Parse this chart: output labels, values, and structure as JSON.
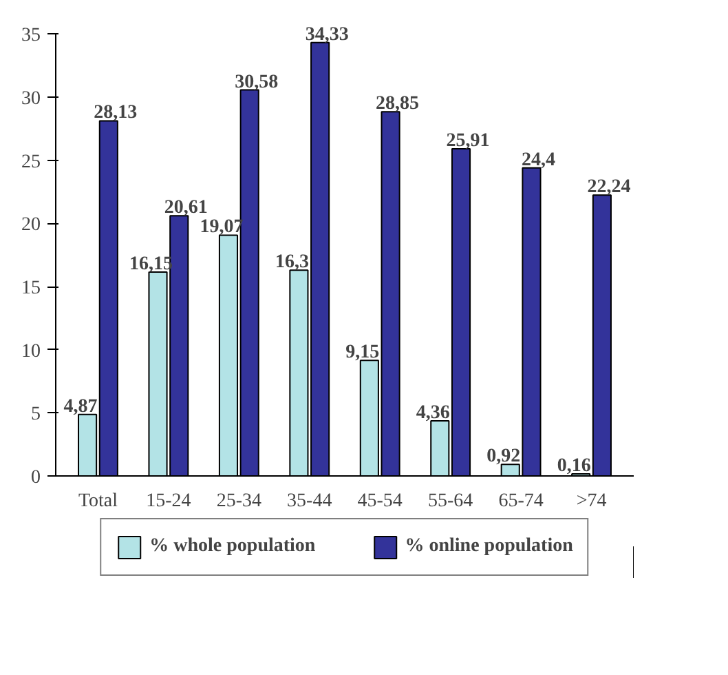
{
  "chart_data": {
    "type": "bar",
    "categories": [
      "Total",
      "15-24",
      "25-34",
      "35-44",
      "45-54",
      "55-64",
      "65-74",
      ">74"
    ],
    "series": [
      {
        "name": "% whole population",
        "color": "#b3e3e6",
        "values": [
          4.87,
          16.15,
          19.07,
          16.3,
          9.15,
          4.36,
          0.92,
          0.16
        ],
        "value_labels": [
          "4,87",
          "16,15",
          "19,07",
          "16,3",
          "9,15",
          "4,36",
          "0,92",
          "0,16"
        ]
      },
      {
        "name": "% online population",
        "color": "#33339a",
        "values": [
          28.13,
          20.61,
          30.58,
          34.33,
          28.85,
          25.91,
          24.4,
          22.24
        ],
        "value_labels": [
          "28,13",
          "20,61",
          "30,58",
          "34,33",
          "28,85",
          "25,91",
          "24,4",
          "22,24"
        ]
      }
    ],
    "ylim": [
      0,
      35
    ],
    "yticks": [
      0,
      5,
      10,
      15,
      20,
      25,
      30,
      35
    ],
    "grid": false,
    "legend": "bottom"
  }
}
